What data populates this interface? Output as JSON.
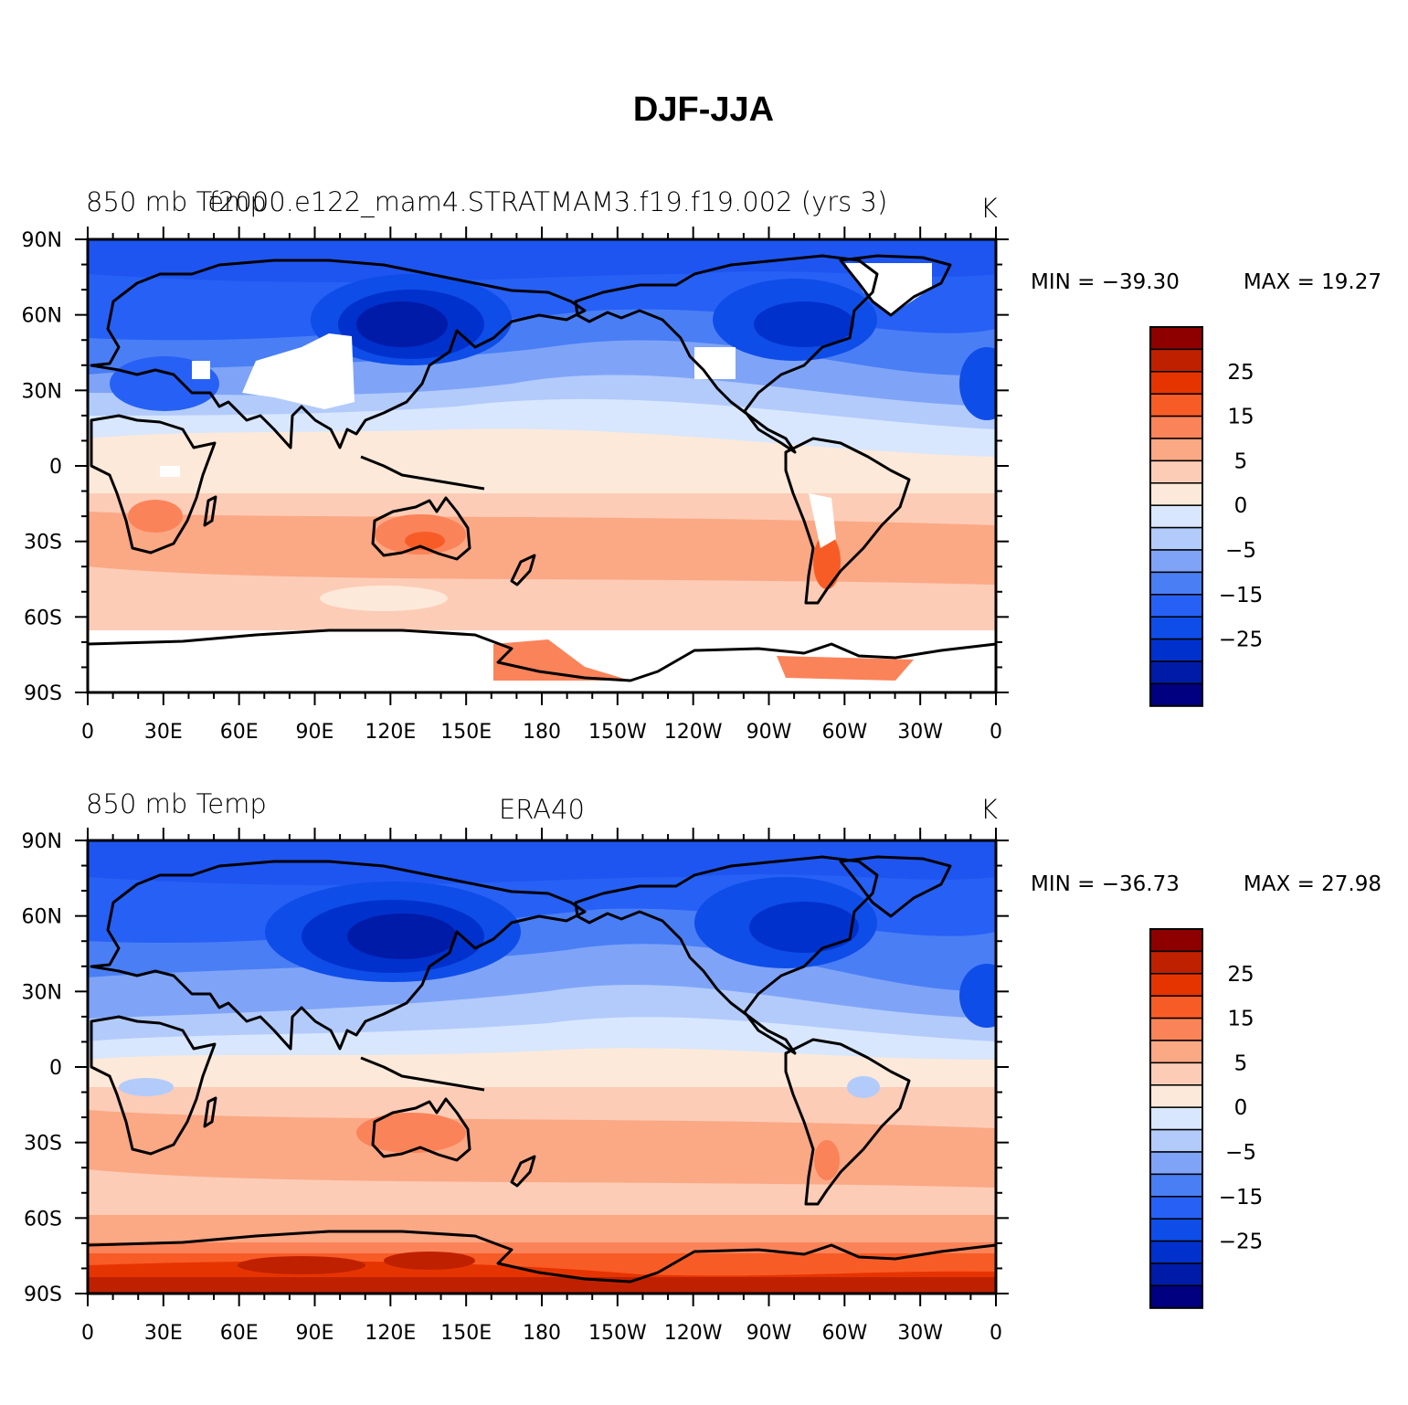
{
  "figure_title": "DJF-JJA",
  "colorbar": {
    "colors": [
      "#000080",
      "#001ba8",
      "#0031cc",
      "#0e4de8",
      "#2760f5",
      "#4a7ef5",
      "#7fa4f7",
      "#b3cbfb",
      "#d8e7fd",
      "#fde9d9",
      "#fcccb6",
      "#fba885",
      "#fb8359",
      "#f85c26",
      "#e63400",
      "#bf2100",
      "#8e0000"
    ],
    "labels": [
      "-25",
      "-15",
      "-5",
      "0",
      "5",
      "15",
      "25"
    ]
  },
  "panels": [
    {
      "left_label": "850 mb Temp",
      "center_label": "f2000.e122_mam4.STRATMAM3.f19.f19.002 (yrs 3)",
      "units_label": "K",
      "min_label": "MIN = -39.30",
      "max_label": "MAX =   19.27"
    },
    {
      "left_label": "850 mb Temp",
      "center_label": "ERA40",
      "units_label": "K",
      "min_label": "MIN = -36.73",
      "max_label": "MAX =   27.98"
    }
  ],
  "axes": {
    "lat_labels": [
      "90N",
      "60N",
      "30N",
      "0",
      "30S",
      "60S",
      "90S"
    ],
    "lon_labels": [
      "0",
      "30E",
      "60E",
      "90E",
      "120E",
      "150E",
      "180",
      "150W",
      "120W",
      "90W",
      "60W",
      "30W",
      "0"
    ]
  }
}
